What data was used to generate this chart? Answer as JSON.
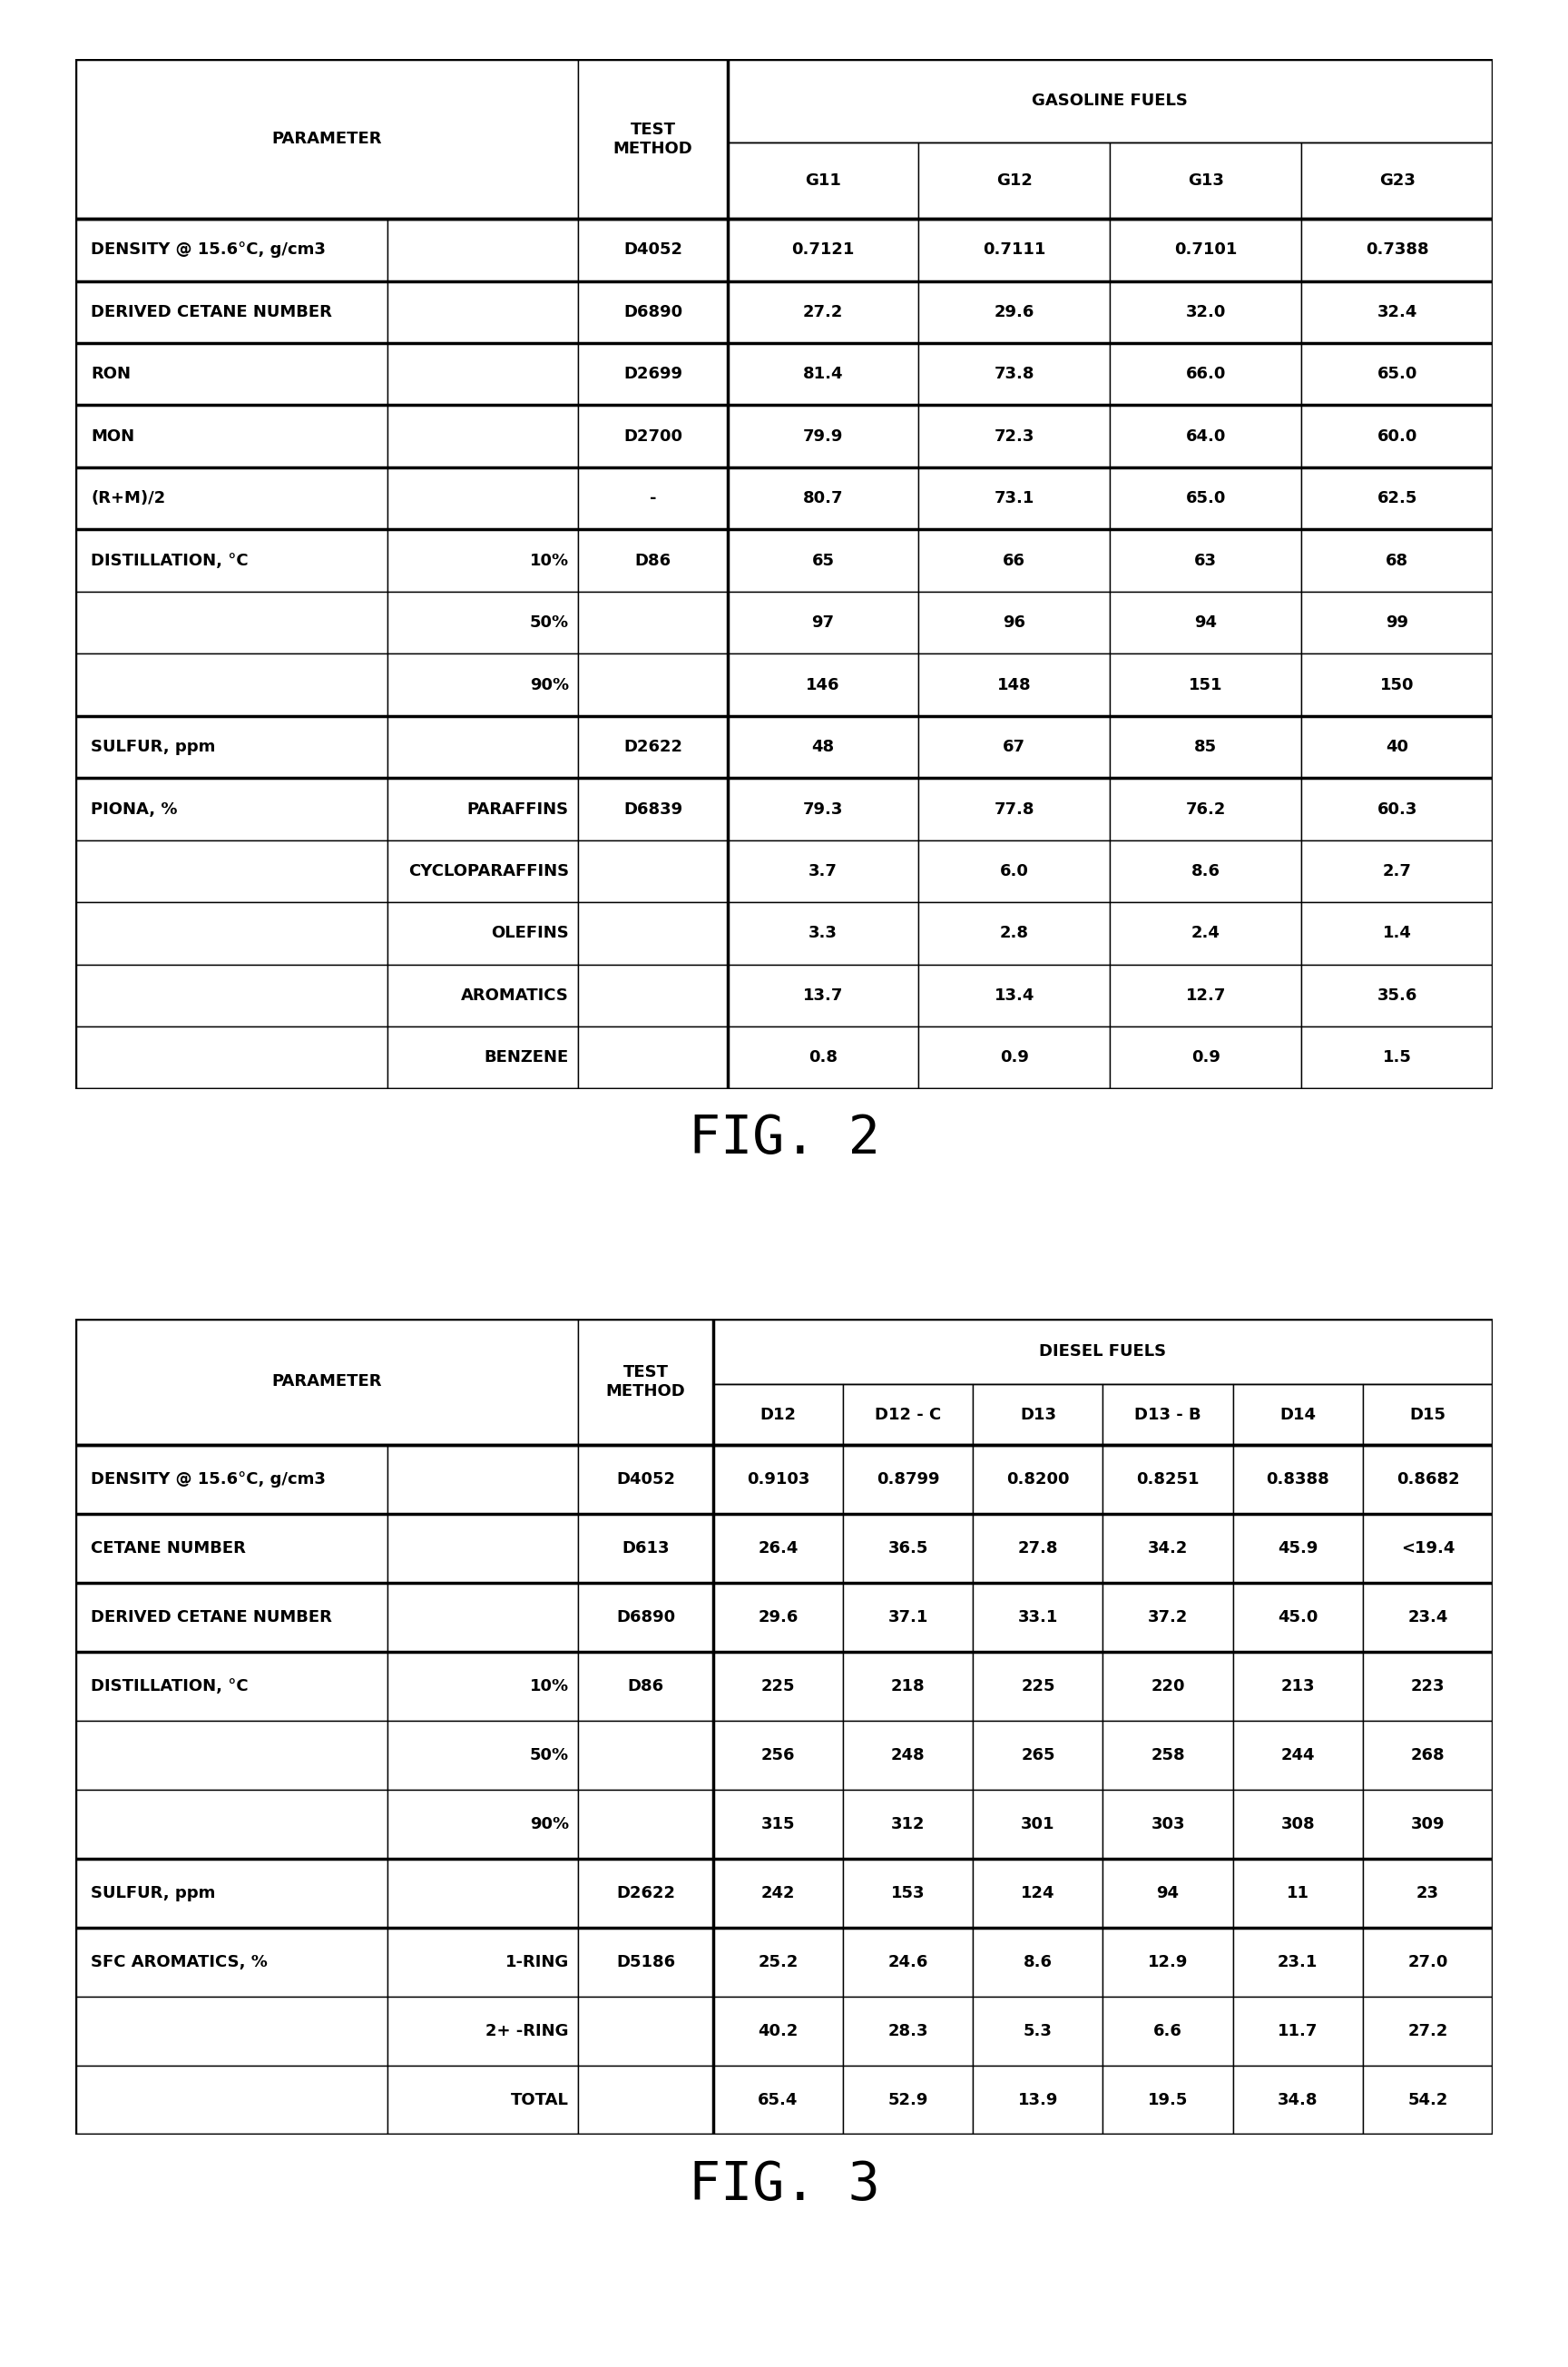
{
  "fig2_title": "FIG. 2",
  "fig3_title": "FIG. 3",
  "gasoline_header": "GASOLINE FUELS",
  "diesel_header": "DIESEL FUELS",
  "param_col": "PARAMETER",
  "test_col_line1": "TEST",
  "test_col_line2": "METHOD",
  "gasoline_fuels": [
    "G11",
    "G12",
    "G13",
    "G23"
  ],
  "diesel_fuels": [
    "D12",
    "D12 - C",
    "D13",
    "D13 - B",
    "D14",
    "D15"
  ],
  "gasoline_rows": [
    {
      "param": "DENSITY @ 15.6°C, g/cm3",
      "sub": "",
      "test": "D4052",
      "values": [
        "0.7121",
        "0.7111",
        "0.7101",
        "0.7388"
      ],
      "thick_top": true
    },
    {
      "param": "DERIVED CETANE NUMBER",
      "sub": "",
      "test": "D6890",
      "values": [
        "27.2",
        "29.6",
        "32.0",
        "32.4"
      ],
      "thick_top": true
    },
    {
      "param": "RON",
      "sub": "",
      "test": "D2699",
      "values": [
        "81.4",
        "73.8",
        "66.0",
        "65.0"
      ],
      "thick_top": true
    },
    {
      "param": "MON",
      "sub": "",
      "test": "D2700",
      "values": [
        "79.9",
        "72.3",
        "64.0",
        "60.0"
      ],
      "thick_top": true
    },
    {
      "param": "(R+M)/2",
      "sub": "",
      "test": "-",
      "values": [
        "80.7",
        "73.1",
        "65.0",
        "62.5"
      ],
      "thick_top": true
    },
    {
      "param": "DISTILLATION, °C",
      "sub": "10%",
      "test": "D86",
      "values": [
        "65",
        "66",
        "63",
        "68"
      ],
      "thick_top": true
    },
    {
      "param": "",
      "sub": "50%",
      "test": "",
      "values": [
        "97",
        "96",
        "94",
        "99"
      ],
      "thick_top": false
    },
    {
      "param": "",
      "sub": "90%",
      "test": "",
      "values": [
        "146",
        "148",
        "151",
        "150"
      ],
      "thick_top": false
    },
    {
      "param": "SULFUR, ppm",
      "sub": "",
      "test": "D2622",
      "values": [
        "48",
        "67",
        "85",
        "40"
      ],
      "thick_top": true
    },
    {
      "param": "PIONA, %",
      "sub": "PARAFFINS",
      "test": "D6839",
      "values": [
        "79.3",
        "77.8",
        "76.2",
        "60.3"
      ],
      "thick_top": true
    },
    {
      "param": "",
      "sub": "CYCLOPARAFFINS",
      "test": "",
      "values": [
        "3.7",
        "6.0",
        "8.6",
        "2.7"
      ],
      "thick_top": false
    },
    {
      "param": "",
      "sub": "OLEFINS",
      "test": "",
      "values": [
        "3.3",
        "2.8",
        "2.4",
        "1.4"
      ],
      "thick_top": false
    },
    {
      "param": "",
      "sub": "AROMATICS",
      "test": "",
      "values": [
        "13.7",
        "13.4",
        "12.7",
        "35.6"
      ],
      "thick_top": false
    },
    {
      "param": "",
      "sub": "BENZENE",
      "test": "",
      "values": [
        "0.8",
        "0.9",
        "0.9",
        "1.5"
      ],
      "thick_top": false
    }
  ],
  "diesel_rows": [
    {
      "param": "DENSITY @ 15.6°C, g/cm3",
      "sub": "",
      "test": "D4052",
      "values": [
        "0.9103",
        "0.8799",
        "0.8200",
        "0.8251",
        "0.8388",
        "0.8682"
      ],
      "thick_top": true
    },
    {
      "param": "CETANE NUMBER",
      "sub": "",
      "test": "D613",
      "values": [
        "26.4",
        "36.5",
        "27.8",
        "34.2",
        "45.9",
        "<19.4"
      ],
      "thick_top": true
    },
    {
      "param": "DERIVED CETANE NUMBER",
      "sub": "",
      "test": "D6890",
      "values": [
        "29.6",
        "37.1",
        "33.1",
        "37.2",
        "45.0",
        "23.4"
      ],
      "thick_top": true
    },
    {
      "param": "DISTILLATION, °C",
      "sub": "10%",
      "test": "D86",
      "values": [
        "225",
        "218",
        "225",
        "220",
        "213",
        "223"
      ],
      "thick_top": true
    },
    {
      "param": "",
      "sub": "50%",
      "test": "",
      "values": [
        "256",
        "248",
        "265",
        "258",
        "244",
        "268"
      ],
      "thick_top": false
    },
    {
      "param": "",
      "sub": "90%",
      "test": "",
      "values": [
        "315",
        "312",
        "301",
        "303",
        "308",
        "309"
      ],
      "thick_top": false
    },
    {
      "param": "SULFUR, ppm",
      "sub": "",
      "test": "D2622",
      "values": [
        "242",
        "153",
        "124",
        "94",
        "11",
        "23"
      ],
      "thick_top": true
    },
    {
      "param": "SFC AROMATICS, %",
      "sub": "1-RING",
      "test": "D5186",
      "values": [
        "25.2",
        "24.6",
        "8.6",
        "12.9",
        "23.1",
        "27.0"
      ],
      "thick_top": true
    },
    {
      "param": "",
      "sub": "2+ -RING",
      "test": "",
      "values": [
        "40.2",
        "28.3",
        "5.3",
        "6.6",
        "11.7",
        "27.2"
      ],
      "thick_top": false
    },
    {
      "param": "",
      "sub": "TOTAL",
      "test": "",
      "values": [
        "65.4",
        "52.9",
        "13.9",
        "19.5",
        "34.8",
        "54.2"
      ],
      "thick_top": false
    }
  ],
  "thick_lw": 2.5,
  "thin_lw": 1.0,
  "font_size": 13,
  "fig_label_size": 42,
  "bg_color": "#ffffff",
  "text_color": "#000000",
  "border_color": "#000000"
}
